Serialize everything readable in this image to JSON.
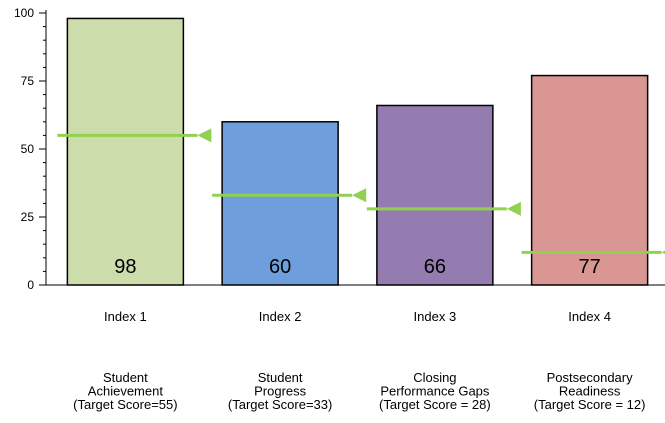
{
  "chart_data": {
    "type": "bar",
    "categories": [
      "Index 1",
      "Index 2",
      "Index 3",
      "Index 4"
    ],
    "subtitles": [
      [
        "Student",
        "Achievement",
        "(Target Score=55)"
      ],
      [
        "Student",
        "Progress",
        "(Target Score=33)"
      ],
      [
        "Closing",
        "Performance Gaps",
        "(Target Score = 28)"
      ],
      [
        "Postsecondary",
        "Readiness",
        "(Target Score = 12)"
      ]
    ],
    "values": [
      98,
      60,
      66,
      77
    ],
    "data_labels": [
      "98",
      "60",
      "66",
      "77"
    ],
    "targets": [
      55,
      33,
      28,
      12
    ],
    "bar_colors": [
      "#ccdcaa",
      "#6e9fdc",
      "#947cb0",
      "#d99693"
    ],
    "target_color": "#92d050",
    "ylim": [
      0,
      100
    ],
    "yticks": [
      0,
      25,
      50,
      75,
      100
    ],
    "ytick_labels": [
      "0",
      "25",
      "50",
      "75",
      "100"
    ],
    "grid": false,
    "legend": "none"
  }
}
